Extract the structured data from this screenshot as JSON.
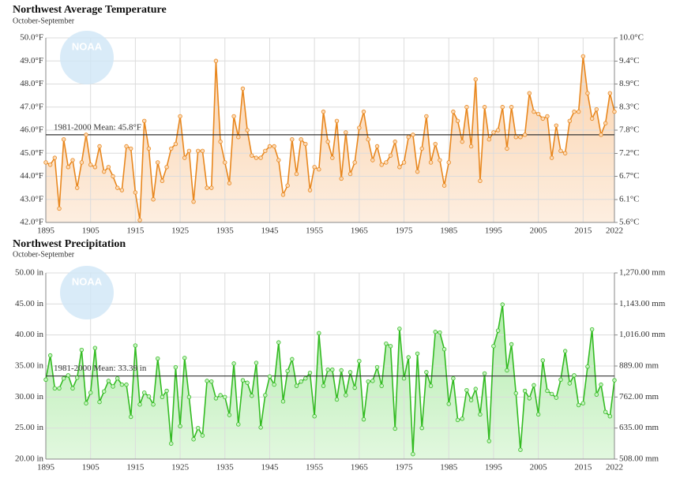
{
  "chart_data": [
    {
      "type": "line",
      "title": "Northwest Average Temperature",
      "subtitle": "October-September",
      "logo_text": "NOAA",
      "color": "#e8871e",
      "area": true,
      "grid": true,
      "x": [
        1895,
        1896,
        1897,
        1898,
        1899,
        1900,
        1901,
        1902,
        1903,
        1904,
        1905,
        1906,
        1907,
        1908,
        1909,
        1910,
        1911,
        1912,
        1913,
        1914,
        1915,
        1916,
        1917,
        1918,
        1919,
        1920,
        1921,
        1922,
        1923,
        1924,
        1925,
        1926,
        1927,
        1928,
        1929,
        1930,
        1931,
        1932,
        1933,
        1934,
        1935,
        1936,
        1937,
        1938,
        1939,
        1940,
        1941,
        1942,
        1943,
        1944,
        1945,
        1946,
        1947,
        1948,
        1949,
        1950,
        1951,
        1952,
        1953,
        1954,
        1955,
        1956,
        1957,
        1958,
        1959,
        1960,
        1961,
        1962,
        1963,
        1964,
        1965,
        1966,
        1967,
        1968,
        1969,
        1970,
        1971,
        1972,
        1973,
        1974,
        1975,
        1976,
        1977,
        1978,
        1979,
        1980,
        1981,
        1982,
        1983,
        1984,
        1985,
        1986,
        1987,
        1988,
        1989,
        1990,
        1991,
        1992,
        1993,
        1994,
        1995,
        1996,
        1997,
        1998,
        1999,
        2000,
        2001,
        2002,
        2003,
        2004,
        2005,
        2006,
        2007,
        2008,
        2009,
        2010,
        2011,
        2012,
        2013,
        2014,
        2015,
        2016,
        2017,
        2018,
        2019,
        2020,
        2021,
        2022
      ],
      "values": [
        44.6,
        44.5,
        44.8,
        42.6,
        45.6,
        44.4,
        44.7,
        43.5,
        44.6,
        45.8,
        44.5,
        44.4,
        45.3,
        44.2,
        44.4,
        44.0,
        43.5,
        43.4,
        45.3,
        45.2,
        43.3,
        42.1,
        46.4,
        45.2,
        43.0,
        44.6,
        43.8,
        44.4,
        45.2,
        45.4,
        46.6,
        44.8,
        45.1,
        42.9,
        45.1,
        45.1,
        43.5,
        43.5,
        49.0,
        45.5,
        44.6,
        43.7,
        46.6,
        45.7,
        47.8,
        46.0,
        44.9,
        44.8,
        44.8,
        45.1,
        45.3,
        45.3,
        44.7,
        43.2,
        43.6,
        45.6,
        44.1,
        45.6,
        45.4,
        43.4,
        44.4,
        44.3,
        46.8,
        45.5,
        44.8,
        46.4,
        43.9,
        45.9,
        44.1,
        44.6,
        46.1,
        46.8,
        45.6,
        44.7,
        45.3,
        44.5,
        44.6,
        44.9,
        45.5,
        44.4,
        44.6,
        45.7,
        45.8,
        44.2,
        45.2,
        46.6,
        44.6,
        45.4,
        44.7,
        43.6,
        44.6,
        46.8,
        46.4,
        45.5,
        47.0,
        45.3,
        48.2,
        43.8,
        47.0,
        45.6,
        45.9,
        46.0,
        47.0,
        45.2,
        47.0,
        45.7,
        45.7,
        45.8,
        47.6,
        46.8,
        46.7,
        46.5,
        46.6,
        44.8,
        46.2,
        45.1,
        45.0,
        46.4,
        46.8,
        46.8,
        49.2,
        47.6,
        46.5,
        46.9,
        45.8,
        46.3,
        47.6,
        46.8
      ],
      "xlim": [
        1895,
        2022
      ],
      "xticks": [
        1895,
        1905,
        1915,
        1925,
        1935,
        1945,
        1955,
        1965,
        1975,
        1985,
        1995,
        2005,
        2015,
        2022
      ],
      "ylim": [
        42.0,
        50.0
      ],
      "yticks": [
        {
          "value": 42.0,
          "label": "42.0°F"
        },
        {
          "value": 43.0,
          "label": "43.0°F"
        },
        {
          "value": 44.0,
          "label": "44.0°F"
        },
        {
          "value": 45.0,
          "label": "45.0°F"
        },
        {
          "value": 46.0,
          "label": "46.0°F"
        },
        {
          "value": 47.0,
          "label": "47.0°F"
        },
        {
          "value": 48.0,
          "label": "48.0°F"
        },
        {
          "value": 49.0,
          "label": "49.0°F"
        },
        {
          "value": 50.0,
          "label": "50.0°F"
        }
      ],
      "y2lim": [
        5.56,
        10.0
      ],
      "y2ticks": [
        {
          "value": 5.56,
          "label": "5.6°C"
        },
        {
          "value": 6.11,
          "label": "6.1°C"
        },
        {
          "value": 6.67,
          "label": "6.7°C"
        },
        {
          "value": 7.22,
          "label": "7.2°C"
        },
        {
          "value": 7.78,
          "label": "7.8°C"
        },
        {
          "value": 8.33,
          "label": "8.3°C"
        },
        {
          "value": 8.89,
          "label": "8.9°C"
        },
        {
          "value": 9.44,
          "label": "9.4°C"
        },
        {
          "value": 10.0,
          "label": "10.0°C"
        }
      ],
      "mean": {
        "value": 45.8,
        "label": "1981-2000 Mean: 45.8°F"
      }
    },
    {
      "type": "line",
      "title": "Northwest Precipitation",
      "subtitle": "October-September",
      "logo_text": "NOAA",
      "color": "#33bb22",
      "area": true,
      "grid": true,
      "x": [
        1895,
        1896,
        1897,
        1898,
        1899,
        1900,
        1901,
        1902,
        1903,
        1904,
        1905,
        1906,
        1907,
        1908,
        1909,
        1910,
        1911,
        1912,
        1913,
        1914,
        1915,
        1916,
        1917,
        1918,
        1919,
        1920,
        1921,
        1922,
        1923,
        1924,
        1925,
        1926,
        1927,
        1928,
        1929,
        1930,
        1931,
        1932,
        1933,
        1934,
        1935,
        1936,
        1937,
        1938,
        1939,
        1940,
        1941,
        1942,
        1943,
        1944,
        1945,
        1946,
        1947,
        1948,
        1949,
        1950,
        1951,
        1952,
        1953,
        1954,
        1955,
        1956,
        1957,
        1958,
        1959,
        1960,
        1961,
        1962,
        1963,
        1964,
        1965,
        1966,
        1967,
        1968,
        1969,
        1970,
        1971,
        1972,
        1973,
        1974,
        1975,
        1976,
        1977,
        1978,
        1979,
        1980,
        1981,
        1982,
        1983,
        1984,
        1985,
        1986,
        1987,
        1988,
        1989,
        1990,
        1991,
        1992,
        1993,
        1994,
        1995,
        1996,
        1997,
        1998,
        1999,
        2000,
        2001,
        2002,
        2003,
        2004,
        2005,
        2006,
        2007,
        2008,
        2009,
        2010,
        2011,
        2012,
        2013,
        2014,
        2015,
        2016,
        2017,
        2018,
        2019,
        2020,
        2021,
        2022
      ],
      "values": [
        32.8,
        36.7,
        31.4,
        31.4,
        33.0,
        33.5,
        31.4,
        33.1,
        37.6,
        29.0,
        30.7,
        37.9,
        29.2,
        30.9,
        32.6,
        31.7,
        33.0,
        32.0,
        32.0,
        26.8,
        38.3,
        28.8,
        30.7,
        30.1,
        28.8,
        36.2,
        30.0,
        31.0,
        22.5,
        34.8,
        25.3,
        36.3,
        30.0,
        23.2,
        25.0,
        23.8,
        32.6,
        32.5,
        29.8,
        30.3,
        30.0,
        27.1,
        35.4,
        25.6,
        32.7,
        32.3,
        30.2,
        35.5,
        25.1,
        30.3,
        33.3,
        32.0,
        38.8,
        29.3,
        34.2,
        36.1,
        31.8,
        32.5,
        33.0,
        33.9,
        26.9,
        40.3,
        31.8,
        34.4,
        34.4,
        29.6,
        34.3,
        30.3,
        34.0,
        31.5,
        35.8,
        26.4,
        32.5,
        32.6,
        34.8,
        31.8,
        38.6,
        38.2,
        24.9,
        41.0,
        33.0,
        36.4,
        20.8,
        37.0,
        25.0,
        34.0,
        31.8,
        40.5,
        40.4,
        37.7,
        28.9,
        33.0,
        26.3,
        26.5,
        31.1,
        29.5,
        31.3,
        27.2,
        33.8,
        22.9,
        38.2,
        40.7,
        44.9,
        34.3,
        38.5,
        30.6,
        21.5,
        31.0,
        29.8,
        31.9,
        27.2,
        35.9,
        31.0,
        30.5,
        29.9,
        32.8,
        37.4,
        32.2,
        33.5,
        28.7,
        29.0,
        34.9,
        40.9,
        30.4,
        32.0,
        27.6,
        26.9,
        32.7
      ],
      "xlim": [
        1895,
        2022
      ],
      "xticks": [
        1895,
        1905,
        1915,
        1925,
        1935,
        1945,
        1955,
        1965,
        1975,
        1985,
        1995,
        2005,
        2015,
        2022
      ],
      "ylim": [
        20.0,
        50.0
      ],
      "yticks": [
        {
          "value": 20.0,
          "label": "20.00 in"
        },
        {
          "value": 25.0,
          "label": "25.00 in"
        },
        {
          "value": 30.0,
          "label": "30.00 in"
        },
        {
          "value": 35.0,
          "label": "35.00 in"
        },
        {
          "value": 40.0,
          "label": "40.00 in"
        },
        {
          "value": 45.0,
          "label": "45.00 in"
        },
        {
          "value": 50.0,
          "label": "50.00 in"
        }
      ],
      "y2lim": [
        508.0,
        1270.0
      ],
      "y2ticks": [
        {
          "value": 508.0,
          "label": "508.00 mm"
        },
        {
          "value": 635.0,
          "label": "635.00 mm"
        },
        {
          "value": 762.0,
          "label": "762.00 mm"
        },
        {
          "value": 889.0,
          "label": "889.00 mm"
        },
        {
          "value": 1016.0,
          "label": "1,016.00 mm"
        },
        {
          "value": 1143.0,
          "label": "1,143.00 mm"
        },
        {
          "value": 1270.0,
          "label": "1,270.00 mm"
        }
      ],
      "mean": {
        "value": 33.39,
        "label": "1981-2000 Mean: 33.39 in"
      }
    }
  ]
}
